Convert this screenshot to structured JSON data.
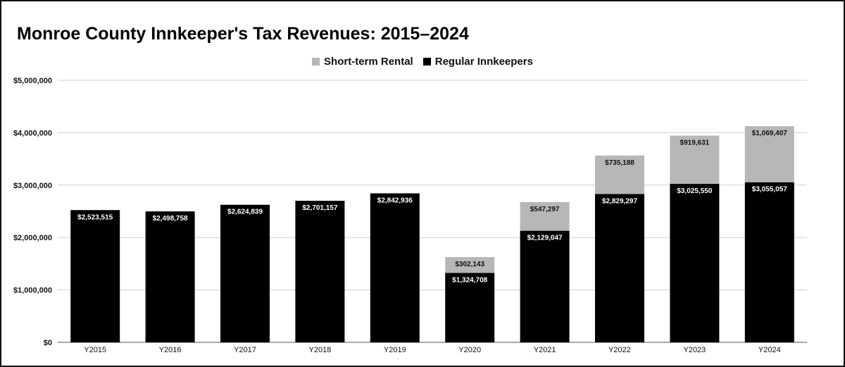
{
  "chart_data": {
    "type": "bar",
    "stacked": true,
    "title": "Monroe County Innkeeper's Tax Revenues: 2015–2024",
    "xlabel": "",
    "ylabel": "",
    "categories": [
      "Y2015",
      "Y2016",
      "Y2017",
      "Y2018",
      "Y2019",
      "Y2020",
      "Y2021",
      "Y2022",
      "Y2023",
      "Y2024"
    ],
    "series": [
      {
        "name": "Regular Innkeepers",
        "color": "#000000",
        "values": [
          2523515,
          2498758,
          2624839,
          2701157,
          2842936,
          1324708,
          2129047,
          2829297,
          3025550,
          3055057
        ],
        "labels": [
          "$2,523,515",
          "$2,498,758",
          "$2,624,839",
          "$2,701,157",
          "$2,842,936",
          "$1,324,708",
          "$2,129,047",
          "$2,829,297",
          "$3,025,550",
          "$3,055,057"
        ]
      },
      {
        "name": "Short-term Rental",
        "color": "#b7b7b7",
        "values": [
          0,
          0,
          0,
          0,
          0,
          302143,
          547297,
          735188,
          919631,
          1069407
        ],
        "labels": [
          "",
          "",
          "",
          "",
          "",
          "$302,143",
          "$547,297",
          "$735,188",
          "$919,631",
          "$1,069,407"
        ]
      }
    ],
    "ylim": [
      0,
      5000000
    ],
    "yticks": [
      0,
      1000000,
      2000000,
      3000000,
      4000000,
      5000000
    ],
    "ytick_labels": [
      "$0",
      "$1,000,000",
      "$2,000,000",
      "$3,000,000",
      "$4,000,000",
      "$5,000,000"
    ],
    "legend": {
      "placement": "top-center",
      "order": [
        "Short-term Rental",
        "Regular Innkeepers"
      ]
    },
    "grid": true
  }
}
